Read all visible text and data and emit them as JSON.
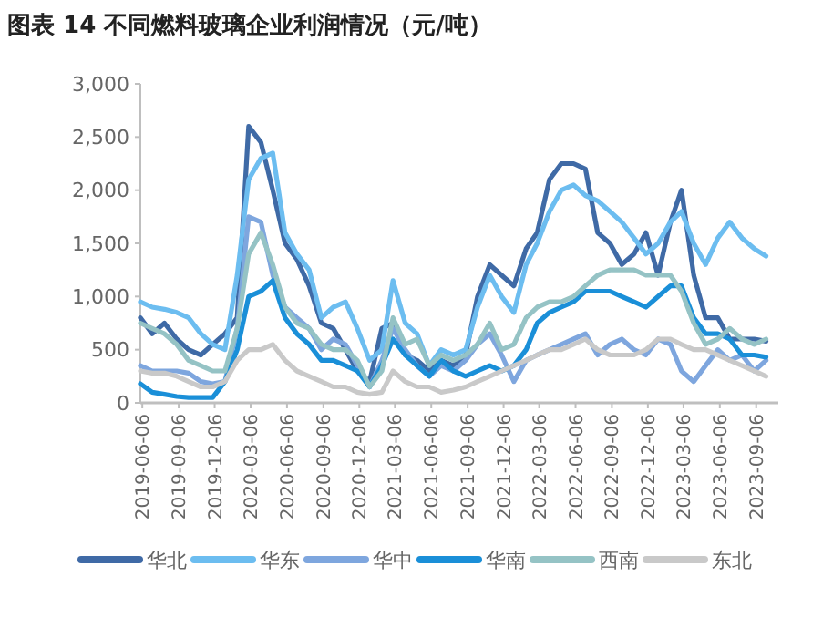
{
  "chart_data": {
    "type": "line",
    "title": "图表 14 不同燃料玻璃企业利润情况（元/吨）",
    "x": [
      "2019-06",
      "2019-07",
      "2019-08",
      "2019-09",
      "2019-10",
      "2019-11",
      "2019-12",
      "2020-01",
      "2020-02",
      "2020-03",
      "2020-04",
      "2020-05",
      "2020-06",
      "2020-07",
      "2020-08",
      "2020-09",
      "2020-10",
      "2020-11",
      "2020-12",
      "2021-01",
      "2021-02",
      "2021-03",
      "2021-04",
      "2021-05",
      "2021-06",
      "2021-07",
      "2021-08",
      "2021-09",
      "2021-10",
      "2021-11",
      "2021-12",
      "2022-01",
      "2022-02",
      "2022-03",
      "2022-04",
      "2022-05",
      "2022-06",
      "2022-07",
      "2022-08",
      "2022-09",
      "2022-10",
      "2022-11",
      "2022-12",
      "2023-01",
      "2023-02",
      "2023-03",
      "2023-04",
      "2023-05",
      "2023-06",
      "2023-07",
      "2023-08",
      "2023-09",
      "2023-10"
    ],
    "series": [
      {
        "name": "华北",
        "color": "#3f6aa6",
        "values": [
          800,
          650,
          750,
          600,
          500,
          450,
          550,
          650,
          800,
          2600,
          2450,
          2000,
          1500,
          1350,
          1100,
          750,
          700,
          500,
          300,
          200,
          700,
          750,
          450,
          400,
          300,
          400,
          350,
          450,
          1000,
          1300,
          1200,
          1100,
          1450,
          1600,
          2100,
          2250,
          2250,
          2200,
          1600,
          1500,
          1300,
          1400,
          1600,
          1200,
          1700,
          2000,
          1200,
          800,
          800,
          600,
          600,
          600,
          580
        ]
      },
      {
        "name": "华东",
        "color": "#6cbdf0",
        "values": [
          950,
          900,
          880,
          850,
          800,
          650,
          550,
          500,
          1200,
          2100,
          2300,
          2350,
          1600,
          1400,
          1250,
          800,
          900,
          950,
          700,
          400,
          500,
          1150,
          750,
          650,
          350,
          500,
          450,
          500,
          900,
          1200,
          1000,
          850,
          1300,
          1500,
          1800,
          2000,
          2050,
          1950,
          1900,
          1800,
          1700,
          1550,
          1400,
          1500,
          1700,
          1800,
          1500,
          1300,
          1550,
          1700,
          1550,
          1450,
          1380
        ]
      },
      {
        "name": "华中",
        "color": "#7ea6de",
        "values": [
          350,
          300,
          300,
          300,
          280,
          200,
          180,
          200,
          700,
          1750,
          1700,
          1200,
          900,
          800,
          700,
          500,
          600,
          550,
          350,
          150,
          400,
          700,
          500,
          350,
          250,
          350,
          300,
          400,
          550,
          650,
          450,
          200,
          400,
          450,
          500,
          550,
          600,
          650,
          450,
          550,
          600,
          500,
          450,
          600,
          550,
          300,
          200,
          350,
          500,
          400,
          450,
          300,
          400
        ]
      },
      {
        "name": "华南",
        "color": "#1a8fd8",
        "values": [
          180,
          100,
          80,
          60,
          50,
          50,
          50,
          200,
          500,
          1000,
          1050,
          1150,
          800,
          650,
          550,
          400,
          400,
          350,
          300,
          150,
          350,
          600,
          450,
          350,
          250,
          400,
          300,
          250,
          300,
          350,
          300,
          350,
          500,
          750,
          850,
          900,
          950,
          1050,
          1050,
          1050,
          1000,
          950,
          900,
          1000,
          1100,
          1100,
          800,
          650,
          650,
          600,
          450,
          450,
          430
        ]
      },
      {
        "name": "西南",
        "color": "#95c3c5",
        "values": [
          750,
          700,
          650,
          550,
          400,
          350,
          300,
          300,
          700,
          1400,
          1600,
          1300,
          900,
          750,
          700,
          550,
          500,
          500,
          400,
          150,
          300,
          800,
          550,
          600,
          350,
          450,
          400,
          450,
          550,
          750,
          500,
          550,
          800,
          900,
          950,
          950,
          1000,
          1100,
          1200,
          1250,
          1250,
          1250,
          1200,
          1200,
          1200,
          1050,
          750,
          550,
          600,
          700,
          600,
          550,
          600
        ]
      },
      {
        "name": "东北",
        "color": "#c9c9c9",
        "values": [
          300,
          280,
          280,
          250,
          200,
          150,
          150,
          200,
          400,
          500,
          500,
          550,
          400,
          300,
          250,
          200,
          150,
          150,
          100,
          80,
          100,
          300,
          200,
          150,
          150,
          100,
          120,
          150,
          200,
          250,
          300,
          350,
          400,
          450,
          500,
          500,
          550,
          600,
          500,
          450,
          450,
          450,
          500,
          600,
          600,
          550,
          500,
          500,
          450,
          400,
          350,
          300,
          250
        ]
      }
    ],
    "xlim": [
      "2019-06-01",
      "2023-11-01"
    ],
    "xticks": [
      "2019-06-06",
      "2019-09-06",
      "2019-12-06",
      "2020-03-06",
      "2020-06-06",
      "2020-09-06",
      "2020-12-06",
      "2021-03-06",
      "2021-06-06",
      "2021-09-06",
      "2021-12-06",
      "2022-03-06",
      "2022-06-06",
      "2022-09-06",
      "2022-12-06",
      "2023-03-06",
      "2023-06-06",
      "2023-09-06"
    ],
    "ylim": [
      0,
      3000
    ],
    "yticks": [
      {
        "value": 0,
        "label": "0"
      },
      {
        "value": 500,
        "label": "500"
      },
      {
        "value": 1000,
        "label": "1,000"
      },
      {
        "value": 1500,
        "label": "1,500"
      },
      {
        "value": 2000,
        "label": "2,000"
      },
      {
        "value": 2500,
        "label": "2,500"
      },
      {
        "value": 3000,
        "label": "3,000"
      }
    ],
    "grid": false,
    "legend": "bottom",
    "marker": "none",
    "line_style": "solid"
  }
}
